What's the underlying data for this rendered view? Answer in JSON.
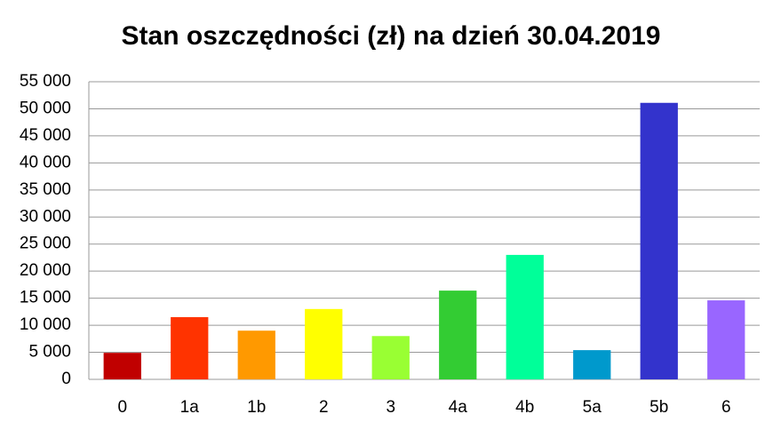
{
  "chart_data": {
    "type": "bar",
    "title": "Stan oszczędności (zł) na dzień 30.04.2019",
    "categories": [
      "0",
      "1a",
      "1b",
      "2",
      "3",
      "4a",
      "4b",
      "5a",
      "5b",
      "6"
    ],
    "values": [
      4900,
      11500,
      9000,
      13000,
      8000,
      16400,
      23000,
      5400,
      51100,
      14600
    ],
    "colors": [
      "#c00000",
      "#ff3300",
      "#ff9900",
      "#ffff00",
      "#99ff33",
      "#33cc33",
      "#00ff99",
      "#0099cc",
      "#3333cc",
      "#9966ff"
    ],
    "ylim": [
      0,
      55000
    ],
    "yticks": [
      0,
      {
        "value": 5000,
        "label": "5 000"
      },
      {
        "value": 10000,
        "label": "10 000"
      },
      {
        "value": 15000,
        "label": "15 000"
      },
      {
        "value": 20000,
        "label": "20 000"
      },
      {
        "value": 25000,
        "label": "25 000"
      },
      {
        "value": 30000,
        "label": "30 000"
      },
      {
        "value": 35000,
        "label": "35 000"
      },
      {
        "value": 40000,
        "label": "40 000"
      },
      {
        "value": 45000,
        "label": "45 000"
      },
      {
        "value": 50000,
        "label": "50 000"
      },
      {
        "value": 55000,
        "label": "55 000"
      }
    ],
    "grid": true
  }
}
